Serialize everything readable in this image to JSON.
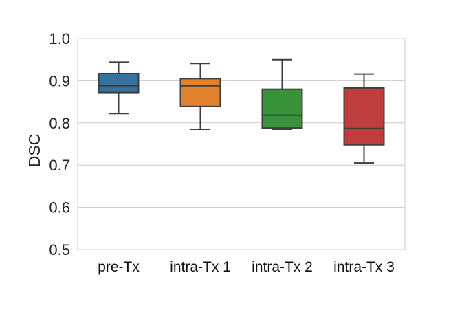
{
  "chart_data": {
    "type": "box",
    "title": "",
    "xlabel": "",
    "ylabel": "DSC",
    "ylim": [
      0.5,
      1.0
    ],
    "yticks": [
      "0.5",
      "0.6",
      "0.7",
      "0.8",
      "0.9",
      "1.0"
    ],
    "grid": "horizontal",
    "categories": [
      "pre-Tx",
      "intra-Tx 1",
      "intra-Tx 2",
      "intra-Tx 3"
    ],
    "boxes": [
      {
        "whisker_low": 0.822,
        "q1": 0.872,
        "median": 0.888,
        "q3": 0.917,
        "whisker_high": 0.944,
        "color": "#3274a1"
      },
      {
        "whisker_low": 0.785,
        "q1": 0.839,
        "median": 0.888,
        "q3": 0.905,
        "whisker_high": 0.941,
        "color": "#e1812c"
      },
      {
        "whisker_low": 0.785,
        "q1": 0.788,
        "median": 0.818,
        "q3": 0.88,
        "whisker_high": 0.95,
        "color": "#3a923a"
      },
      {
        "whisker_low": 0.705,
        "q1": 0.748,
        "median": 0.787,
        "q3": 0.883,
        "whisker_high": 0.916,
        "color": "#c03d3e"
      }
    ]
  }
}
